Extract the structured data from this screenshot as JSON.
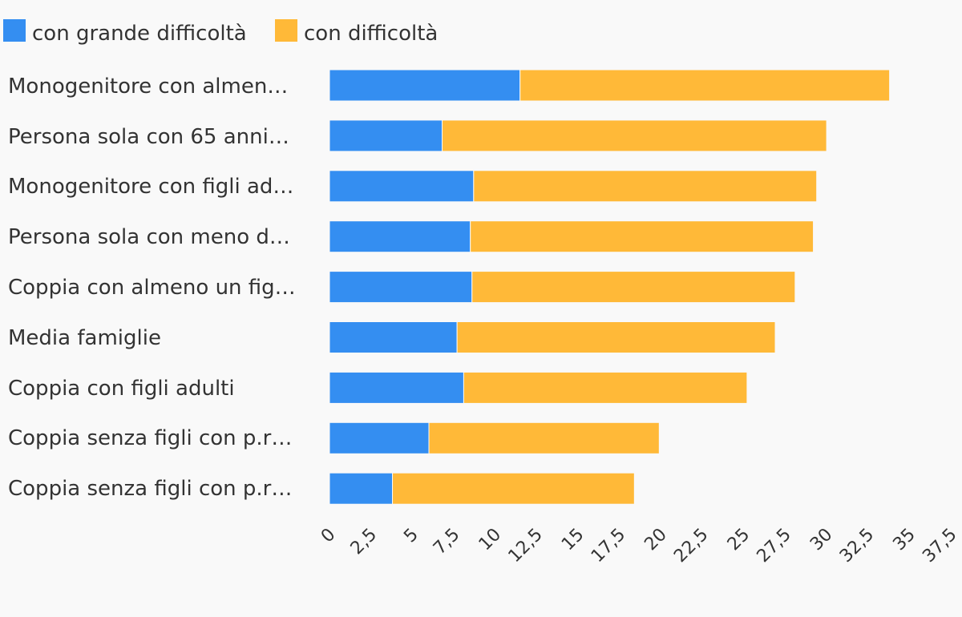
{
  "colors": {
    "background": "#f9f9f9",
    "text": "#333333",
    "series_0": "#348ef1",
    "series_1": "#ffb938"
  },
  "chart_data": {
    "type": "bar",
    "orientation": "horizontal",
    "stacked": true,
    "title": "",
    "xlabel": "",
    "ylabel": "",
    "xlim": [
      0,
      37.5
    ],
    "grid": false,
    "legend_position": "top-left",
    "categories": [
      "Monogenitore con almen…",
      "Persona sola con 65 anni…",
      "Monogenitore con figli ad…",
      "Persona sola con meno d…",
      "Coppia con almeno un fig…",
      "Media famiglie",
      "Coppia con figli adulti",
      "Coppia senza figli con p.r…",
      "Coppia senza figli con p.r…"
    ],
    "ticks": [
      "0",
      "2,5",
      "5",
      "7,5",
      "10",
      "12,5",
      "15",
      "17,5",
      "20",
      "22,5",
      "25",
      "27,5",
      "30",
      "32,5",
      "35",
      "37,5"
    ],
    "tick_values": [
      0,
      2.5,
      5,
      7.5,
      10,
      12.5,
      15,
      17.5,
      20,
      22.5,
      25,
      27.5,
      30,
      32.5,
      35,
      37.5
    ],
    "series": [
      {
        "name": "con grande difficoltà",
        "values": [
          11.5,
          6.8,
          8.7,
          8.5,
          8.6,
          7.7,
          8.1,
          6.0,
          3.8
        ]
      },
      {
        "name": "con difficoltà",
        "values": [
          22.3,
          23.2,
          20.7,
          20.7,
          19.5,
          19.2,
          17.1,
          13.9,
          14.6
        ]
      }
    ]
  }
}
